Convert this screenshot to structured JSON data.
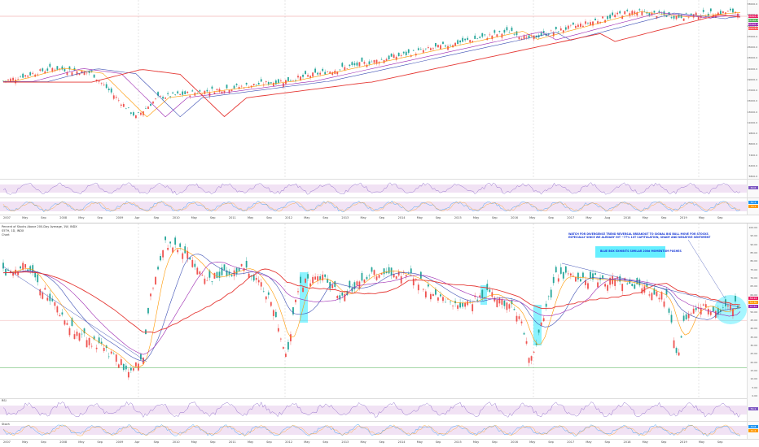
{
  "top_chart": {
    "price_ticks": [
      "33000.0",
      "31000.0",
      "29000.0",
      "27000.0",
      "25000.0",
      "23000.0",
      "21000.0",
      "19000.0",
      "17000.0",
      "15000.0",
      "13000.0",
      "11000.0",
      "9800.0",
      "8600.0",
      "7400.0",
      "6200.0",
      "5800.0"
    ],
    "badges": [
      {
        "text": "26891.5",
        "color": "#e91e63"
      },
      {
        "text": "26484.6",
        "color": "#4caf50"
      },
      {
        "text": "25895.2",
        "color": "#9c27b0"
      },
      {
        "text": "24578.0",
        "color": "#ff5252"
      }
    ],
    "rsi_badges": [
      {
        "text": "60.6",
        "color": "#7e57c2"
      }
    ],
    "stoch_badges": [
      {
        "text": "82.4",
        "color": "#2196f3"
      },
      {
        "text": "76.1",
        "color": "#ff9800"
      }
    ]
  },
  "top_dates": [
    "2007",
    "May",
    "Sep",
    "2008",
    "May",
    "Sep",
    "2009",
    "Apr",
    "Sep",
    "2010",
    "May",
    "Sep",
    "2011",
    "May",
    "Sep",
    "2012",
    "May",
    "Sep",
    "2013",
    "May",
    "Sep",
    "2014",
    "May",
    "Sep",
    "2015",
    "May",
    "Sep",
    "2016",
    "May",
    "Sep",
    "2017",
    "May",
    "Aug",
    "2018",
    "May",
    "Sep",
    "2019",
    "May",
    "Sep"
  ],
  "bottom_chart": {
    "title_lines": [
      "Percent of Stocks Above 200-Day Average, 1W, INDX",
      "S5TH, 1D, INDX",
      "Chart"
    ],
    "price_ticks": [
      "100.00",
      "95.00",
      "90.00",
      "85.00",
      "80.00",
      "75.00",
      "70.00",
      "65.00",
      "60.00",
      "55.00",
      "50.00",
      "45.00",
      "40.00",
      "35.00",
      "30.00",
      "25.00",
      "20.00",
      "15.00",
      "10.00",
      "5.00",
      "0.00"
    ],
    "badges": [
      {
        "text": "56.24",
        "color": "#e91e63"
      },
      {
        "text": "53.30",
        "color": "#ff9800"
      },
      {
        "text": "47.81",
        "color": "#9c27b0"
      }
    ],
    "note_top": [
      "WATCH FOR DIVERGENCE TREND REVERSAL BREAKOUT TO SIGNAL BIG BULL MOVE FOR STOCKS",
      "ESPECIALLY SINCE WE ALREADY HIT ~77% 1ST CAPITULATION, SHADY AND NEGATIVE SENTIMENT"
    ],
    "note_mid": "BLUE BOX EXHIBITS SIMILAR 200d MOMENTUM PUSHES",
    "rsi_label": "RSI",
    "rsi_badges": [
      {
        "text": "54.1",
        "color": "#7e57c2"
      }
    ],
    "stoch_label": "Stoch",
    "stoch_badges": [
      {
        "text": "49.8",
        "color": "#2196f3"
      },
      {
        "text": "41.2",
        "color": "#ff9800"
      }
    ]
  },
  "bottom_dates": [
    "2007",
    "May",
    "Sep",
    "2008",
    "May",
    "Sep",
    "2009",
    "Apr",
    "Sep",
    "2010",
    "May",
    "Sep",
    "2011",
    "May",
    "Sep",
    "2012",
    "May",
    "Sep",
    "2013",
    "May",
    "Sep",
    "2014",
    "May",
    "Sep",
    "2015",
    "May",
    "Sep",
    "2016",
    "May",
    "Sep",
    "2017",
    "May",
    "Sep",
    "2018",
    "May",
    "Sep",
    "2019",
    "May",
    "Sep"
  ],
  "colors": {
    "up": "#26a69a",
    "down": "#ef5350",
    "ma_fast": "#ff9800",
    "ma_mid": "#9c27b0",
    "ma_slow": "#e53935",
    "ma_blue": "#3f51b5",
    "highlight": "#00e5ff",
    "support": "#4caf50"
  }
}
